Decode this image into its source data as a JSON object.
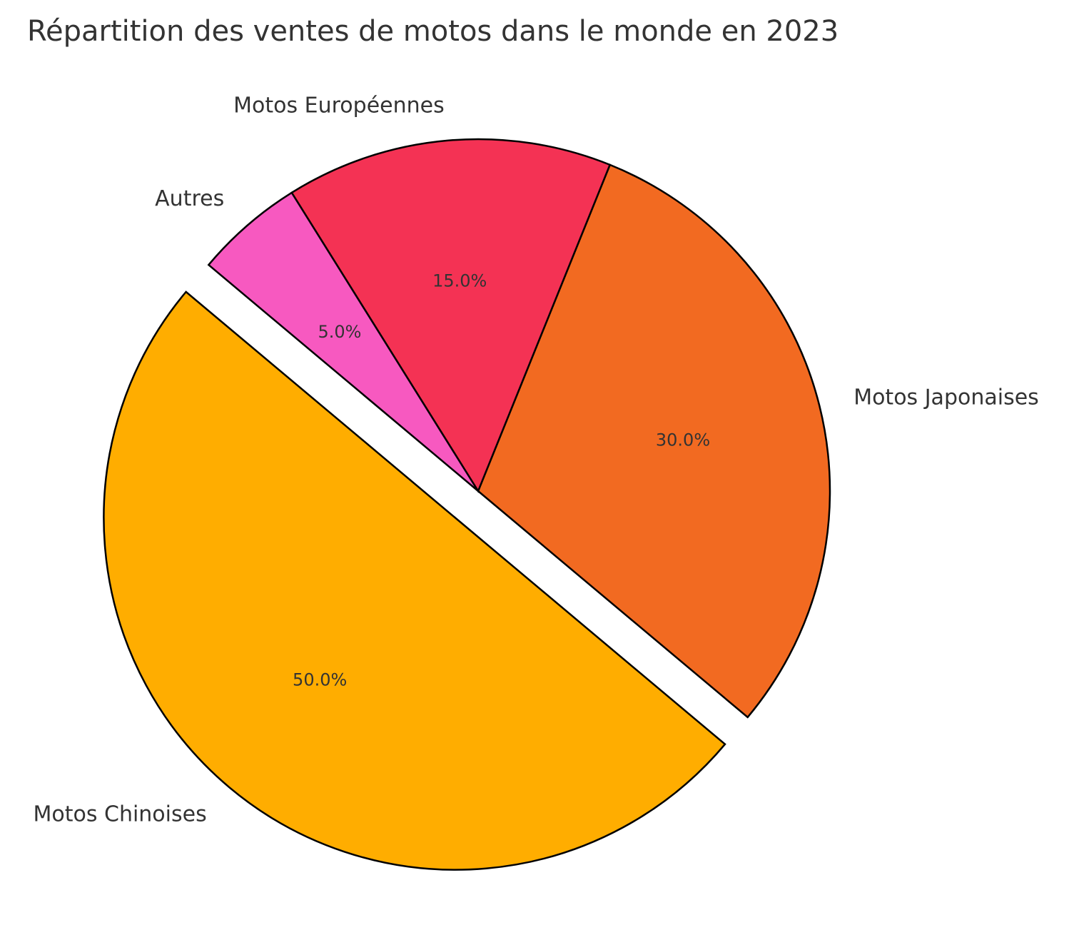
{
  "chart_data": {
    "type": "pie",
    "title": "Répartition des ventes de motos dans le monde en 2023",
    "categories": [
      "Motos Chinoises",
      "Motos Japonaises",
      "Motos Européennes",
      "Autres"
    ],
    "values": [
      50,
      30,
      15,
      5
    ],
    "percent_labels": [
      "50.0%",
      "30.0%",
      "15.0%",
      "5.0%"
    ],
    "colors": [
      "#FFAD00",
      "#F26A21",
      "#F43254",
      "#F759C0"
    ],
    "exploded": "Motos Chinoises",
    "edge_color": "#000000"
  }
}
